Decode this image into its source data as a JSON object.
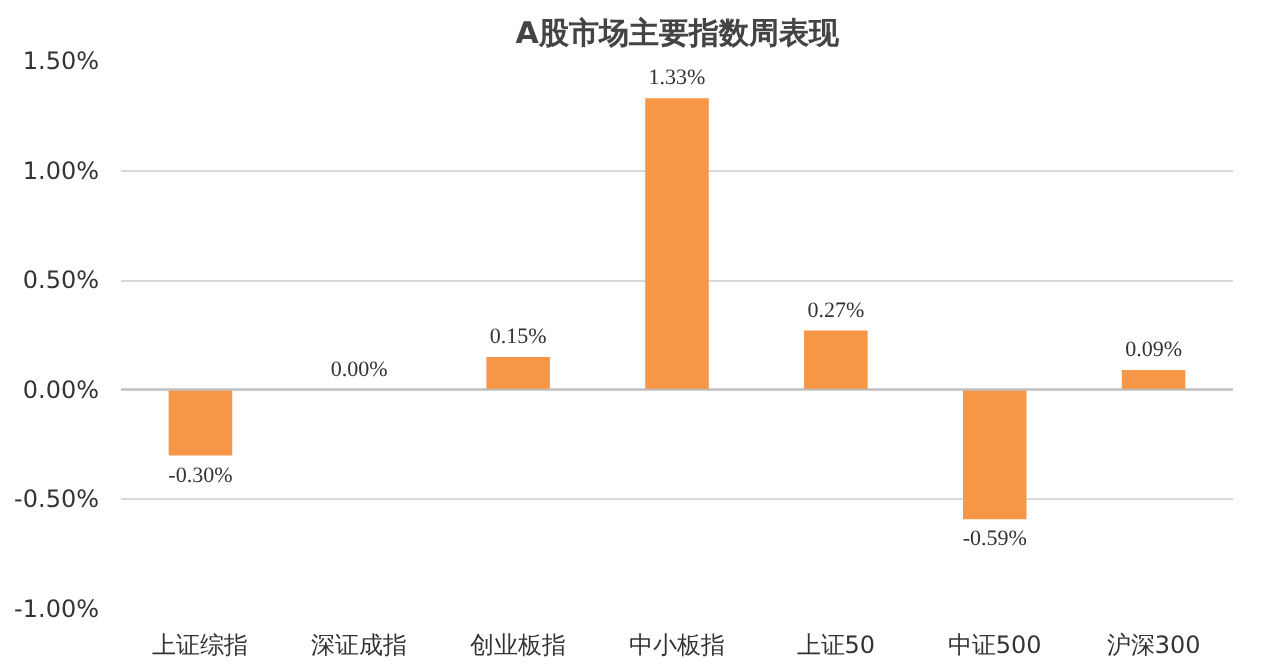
{
  "chart_data": {
    "type": "bar",
    "title": "A股市场主要指数周表现",
    "categories": [
      "上证综指",
      "深证成指",
      "创业板指",
      "中小板指",
      "上证50",
      "中证500",
      "沪深300"
    ],
    "values": [
      -0.3,
      0.0,
      0.15,
      1.33,
      0.27,
      -0.59,
      0.09
    ],
    "value_labels": [
      "-0.30%",
      "0.00%",
      "0.15%",
      "1.33%",
      "0.27%",
      "-0.59%",
      "0.09%"
    ],
    "color": "#f79646",
    "ylim": [
      -1.0,
      1.5
    ],
    "yticks": [
      {
        "value": -1.0,
        "label": "-1.00%"
      },
      {
        "value": -0.5,
        "label": "-0.50%"
      },
      {
        "value": 0.0,
        "label": "0.00%"
      },
      {
        "value": 0.5,
        "label": "0.50%"
      },
      {
        "value": 1.0,
        "label": "1.00%"
      },
      {
        "value": 1.5,
        "label": "1.50%"
      }
    ],
    "grid": "y"
  }
}
